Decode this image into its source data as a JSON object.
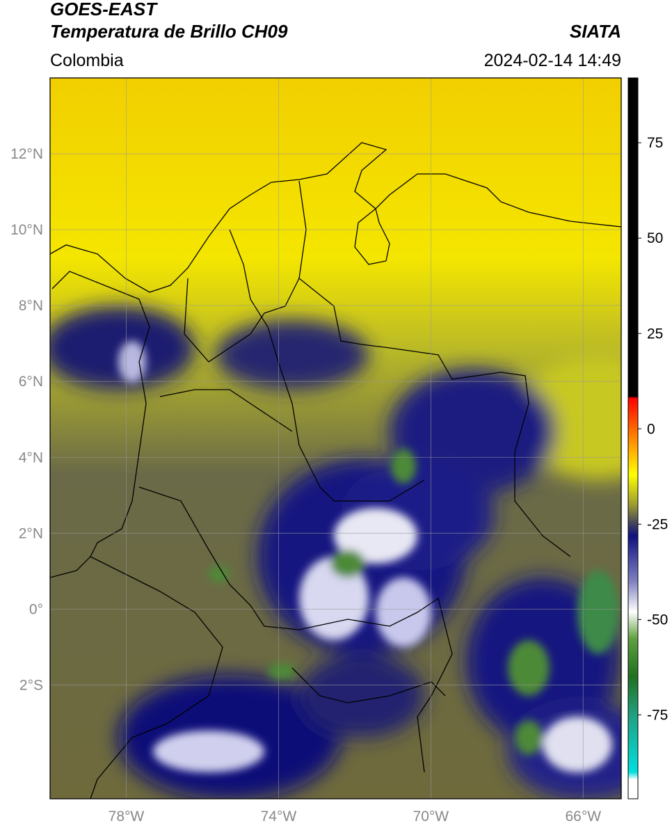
{
  "header": {
    "title": "GOES-EAST",
    "subtitle": "Temperatura de Brillo CH09",
    "source": "SIATA",
    "region": "Colombia",
    "datetime": "2024-02-14 14:49"
  },
  "map": {
    "xlim": [
      -80,
      -65
    ],
    "ylim": [
      -5,
      14
    ],
    "grid": true,
    "xticks": [
      {
        "value": -78,
        "label": "78°W"
      },
      {
        "value": -74,
        "label": "74°W"
      },
      {
        "value": -70,
        "label": "70°W"
      },
      {
        "value": -66,
        "label": "66°W"
      }
    ],
    "yticks": [
      {
        "value": 12,
        "label": "12°N"
      },
      {
        "value": 10,
        "label": "10°N"
      },
      {
        "value": 8,
        "label": "8°N"
      },
      {
        "value": 6,
        "label": "6°N"
      },
      {
        "value": 4,
        "label": "4°N"
      },
      {
        "value": 2,
        "label": "2°N"
      },
      {
        "value": 0,
        "label": "0°"
      },
      {
        "value": -2,
        "label": "2°S"
      }
    ]
  },
  "colorbar": {
    "lim": [
      -97,
      92
    ],
    "ticks": [
      75,
      50,
      25,
      0,
      -25,
      -50,
      -75
    ],
    "stops": [
      {
        "value": 92,
        "color": "#000000"
      },
      {
        "value": 8.5,
        "color": "#000000"
      },
      {
        "value": 8,
        "color": "#ff0000"
      },
      {
        "value": -2,
        "color": "#ff8000"
      },
      {
        "value": -12,
        "color": "#ffff00"
      },
      {
        "value": -20,
        "color": "#9a9a30"
      },
      {
        "value": -25,
        "color": "#404060"
      },
      {
        "value": -28,
        "color": "#101080"
      },
      {
        "value": -40,
        "color": "#8080c0"
      },
      {
        "value": -48,
        "color": "#ffffff"
      },
      {
        "value": -55,
        "color": "#60a040"
      },
      {
        "value": -65,
        "color": "#207020"
      },
      {
        "value": -75,
        "color": "#20a080"
      },
      {
        "value": -90,
        "color": "#00e0e0"
      },
      {
        "value": -92,
        "color": "#ffffff"
      },
      {
        "value": -97,
        "color": "#ffffff"
      }
    ]
  }
}
